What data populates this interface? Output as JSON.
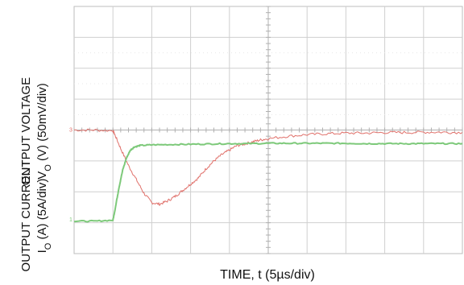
{
  "chart_data": {
    "type": "line",
    "title": "",
    "xlabel": "TIME, t (5µs/div)",
    "ylabels": [
      {
        "line1": "OUTPUT VOLTAGE",
        "line2_main": "V",
        "line2_sub": "O",
        "line2_rest": " (V) (50mV/div)"
      },
      {
        "line1": "OUTPUT CURRENT",
        "line2_main": "I",
        "line2_sub": "O",
        "line2_rest": " (A) (5A/div)"
      }
    ],
    "x_divisions": 10,
    "y_divisions": 8,
    "grid": true,
    "xlim": [
      0,
      10
    ],
    "ylim": [
      0,
      8
    ],
    "series": [
      {
        "color": "#e0706a",
        "marker": "3",
        "marker_y": 4.0,
        "x": [
          0,
          0.5,
          1.0,
          1.05,
          1.2,
          1.4,
          1.6,
          1.8,
          2.0,
          2.2,
          2.4,
          2.6,
          2.8,
          3.0,
          3.2,
          3.4,
          3.6,
          3.8,
          4.0,
          4.2,
          4.4,
          4.6,
          4.8,
          5.0,
          5.5,
          6.0,
          6.5,
          7.0,
          7.5,
          8.0,
          8.5,
          9.0,
          9.5,
          10.0
        ],
        "y": [
          4.0,
          4.0,
          3.98,
          3.85,
          3.4,
          2.85,
          2.4,
          1.95,
          1.65,
          1.6,
          1.7,
          1.85,
          2.05,
          2.25,
          2.45,
          2.75,
          3.0,
          3.2,
          3.35,
          3.5,
          3.55,
          3.62,
          3.68,
          3.72,
          3.8,
          3.85,
          3.88,
          3.9,
          3.9,
          3.92,
          3.92,
          3.93,
          3.93,
          3.92
        ]
      },
      {
        "color": "#7dc97a",
        "marker": "1",
        "marker_y": 1.1,
        "x": [
          0,
          0.5,
          1.0,
          1.05,
          1.15,
          1.25,
          1.35,
          1.45,
          1.55,
          1.7,
          2.0,
          2.5,
          3.0,
          3.5,
          4.0,
          4.5,
          5.0,
          5.5,
          6.0,
          6.5,
          7.0,
          7.5,
          8.0,
          8.5,
          9.0,
          9.5,
          10.0
        ],
        "y": [
          1.05,
          1.05,
          1.08,
          1.4,
          2.1,
          2.7,
          3.1,
          3.35,
          3.45,
          3.5,
          3.52,
          3.53,
          3.54,
          3.55,
          3.56,
          3.56,
          3.57,
          3.57,
          3.57,
          3.57,
          3.57,
          3.56,
          3.56,
          3.56,
          3.56,
          3.56,
          3.56
        ]
      }
    ]
  }
}
